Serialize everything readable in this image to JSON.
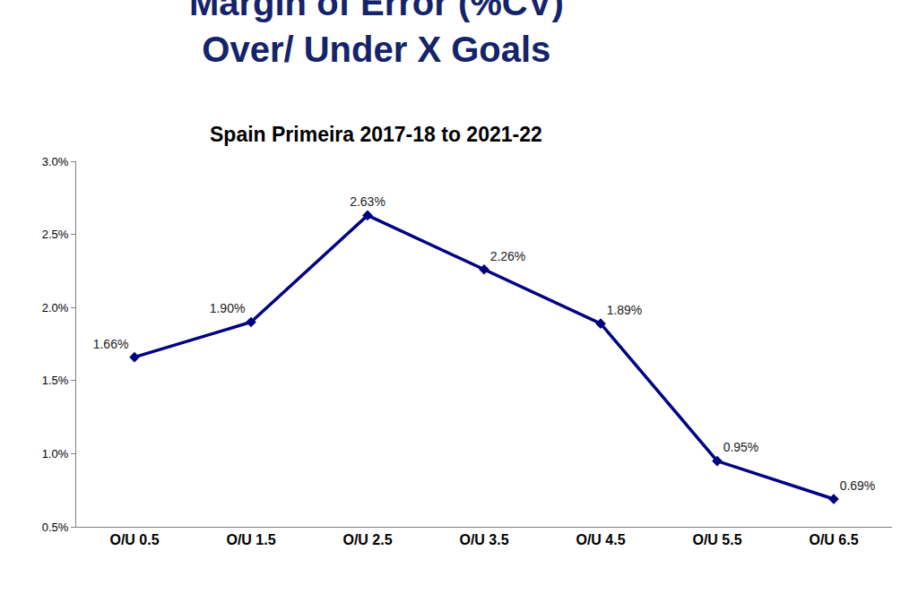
{
  "chart_data": {
    "type": "line",
    "title": "Margin of Error (%CV)\nOver/ Under X Goals",
    "subtitle": "Spain Primeira 2017-18 to 2021-22",
    "categories": [
      "O/U 0.5",
      "O/U 1.5",
      "O/U 2.5",
      "O/U 3.5",
      "O/U 4.5",
      "O/U 5.5",
      "O/U 6.5"
    ],
    "values": [
      1.66,
      1.9,
      2.63,
      2.26,
      1.89,
      0.95,
      0.69
    ],
    "value_labels": [
      "1.66%",
      "1.90%",
      "2.63%",
      "2.26%",
      "1.89%",
      "0.95%",
      "0.69%"
    ],
    "data_labels": true,
    "color": "#000080",
    "marker": "diamond",
    "ylim": [
      0.5,
      3.0
    ],
    "yticks": [
      {
        "value": 0.5,
        "label": "0.5%"
      },
      {
        "value": 1.0,
        "label": "1.0%"
      },
      {
        "value": 1.5,
        "label": "1.5%"
      },
      {
        "value": 2.0,
        "label": "2.0%"
      },
      {
        "value": 2.5,
        "label": "2.5%"
      },
      {
        "value": 3.0,
        "label": "3.0%"
      }
    ],
    "grid": false
  }
}
